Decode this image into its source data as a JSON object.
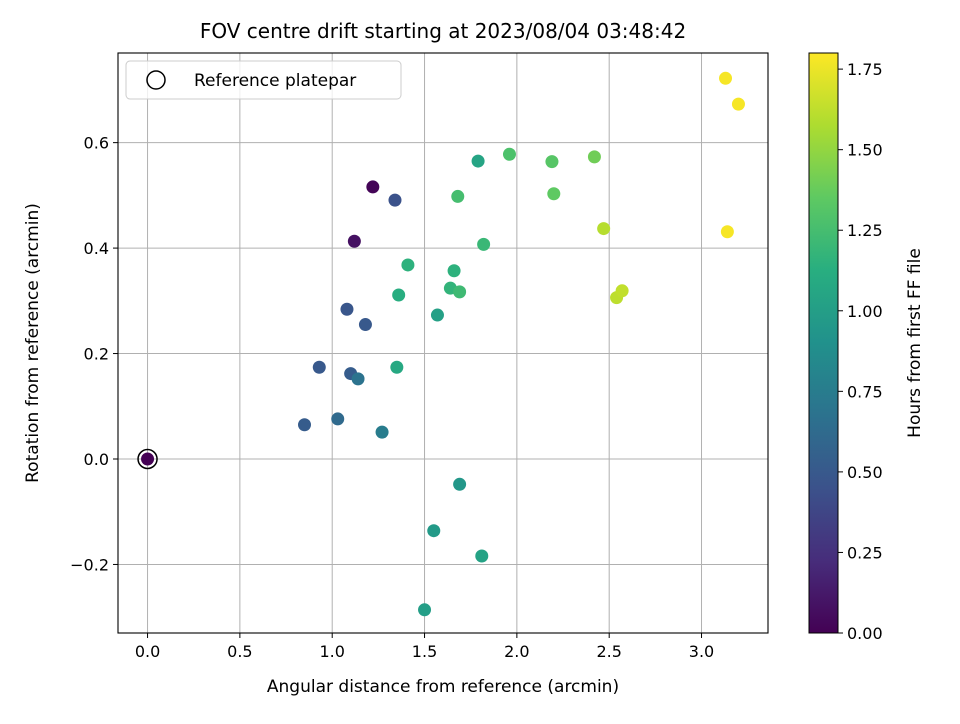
{
  "chart_data": {
    "type": "scatter",
    "title": "FOV centre drift starting at 2023/08/04 03:48:42",
    "xlabel": "Angular distance from reference (arcmin)",
    "ylabel": "Rotation from reference (arcmin)",
    "xlim": [
      -0.16,
      3.36
    ],
    "ylim": [
      -0.33,
      0.77
    ],
    "xticks": [
      0.0,
      0.5,
      1.0,
      1.5,
      2.0,
      2.5,
      3.0
    ],
    "xtick_labels": [
      "0.0",
      "0.5",
      "1.0",
      "1.5",
      "2.0",
      "2.5",
      "3.0"
    ],
    "yticks": [
      -0.2,
      0.0,
      0.2,
      0.4,
      0.6
    ],
    "ytick_labels": [
      "−0.2",
      "0.0",
      "0.2",
      "0.4",
      "0.6"
    ],
    "grid": true,
    "legend": {
      "placement": "top-left",
      "entries": [
        {
          "label": "Reference platepar",
          "marker": "open-circle",
          "color": "#000000"
        }
      ]
    },
    "colorbar": {
      "label": "Hours from first FF file",
      "colormap": "viridis",
      "range": [
        0.0,
        1.8
      ],
      "ticks": [
        0.0,
        0.25,
        0.5,
        0.75,
        1.0,
        1.25,
        1.5,
        1.75
      ],
      "tick_labels": [
        "0.00",
        "0.25",
        "0.50",
        "0.75",
        "1.00",
        "1.25",
        "1.50",
        "1.75"
      ]
    },
    "reference_point": {
      "x": 0.0,
      "y": 0.0
    },
    "series": [
      {
        "points": [
          {
            "x": 0.0,
            "y": 0.0,
            "c": 0.0
          },
          {
            "x": 1.22,
            "y": 0.516,
            "c": 0.02
          },
          {
            "x": 1.12,
            "y": 0.413,
            "c": 0.08
          },
          {
            "x": 1.34,
            "y": 0.491,
            "c": 0.45
          },
          {
            "x": 1.08,
            "y": 0.284,
            "c": 0.48
          },
          {
            "x": 1.18,
            "y": 0.255,
            "c": 0.5
          },
          {
            "x": 0.93,
            "y": 0.174,
            "c": 0.5
          },
          {
            "x": 1.1,
            "y": 0.162,
            "c": 0.52
          },
          {
            "x": 0.85,
            "y": 0.065,
            "c": 0.52
          },
          {
            "x": 1.03,
            "y": 0.076,
            "c": 0.62
          },
          {
            "x": 1.14,
            "y": 0.152,
            "c": 0.68
          },
          {
            "x": 1.27,
            "y": 0.051,
            "c": 0.75
          },
          {
            "x": 1.69,
            "y": -0.048,
            "c": 0.95
          },
          {
            "x": 1.55,
            "y": -0.136,
            "c": 0.97
          },
          {
            "x": 1.5,
            "y": -0.286,
            "c": 1.0
          },
          {
            "x": 1.57,
            "y": 0.273,
            "c": 1.02
          },
          {
            "x": 1.81,
            "y": -0.184,
            "c": 1.03
          },
          {
            "x": 1.79,
            "y": 0.565,
            "c": 1.05
          },
          {
            "x": 1.35,
            "y": 0.174,
            "c": 1.08
          },
          {
            "x": 1.36,
            "y": 0.311,
            "c": 1.12
          },
          {
            "x": 1.41,
            "y": 0.368,
            "c": 1.15
          },
          {
            "x": 1.66,
            "y": 0.357,
            "c": 1.15
          },
          {
            "x": 1.64,
            "y": 0.324,
            "c": 1.17
          },
          {
            "x": 1.82,
            "y": 0.407,
            "c": 1.2
          },
          {
            "x": 1.69,
            "y": 0.317,
            "c": 1.22
          },
          {
            "x": 1.68,
            "y": 0.498,
            "c": 1.25
          },
          {
            "x": 1.96,
            "y": 0.578,
            "c": 1.28
          },
          {
            "x": 2.19,
            "y": 0.564,
            "c": 1.32
          },
          {
            "x": 2.2,
            "y": 0.503,
            "c": 1.35
          },
          {
            "x": 2.42,
            "y": 0.573,
            "c": 1.4
          },
          {
            "x": 2.47,
            "y": 0.437,
            "c": 1.6
          },
          {
            "x": 2.54,
            "y": 0.306,
            "c": 1.62
          },
          {
            "x": 2.57,
            "y": 0.319,
            "c": 1.63
          },
          {
            "x": 3.13,
            "y": 0.722,
            "c": 1.78
          },
          {
            "x": 3.2,
            "y": 0.673,
            "c": 1.78
          },
          {
            "x": 3.14,
            "y": 0.431,
            "c": 1.78
          }
        ]
      }
    ]
  }
}
